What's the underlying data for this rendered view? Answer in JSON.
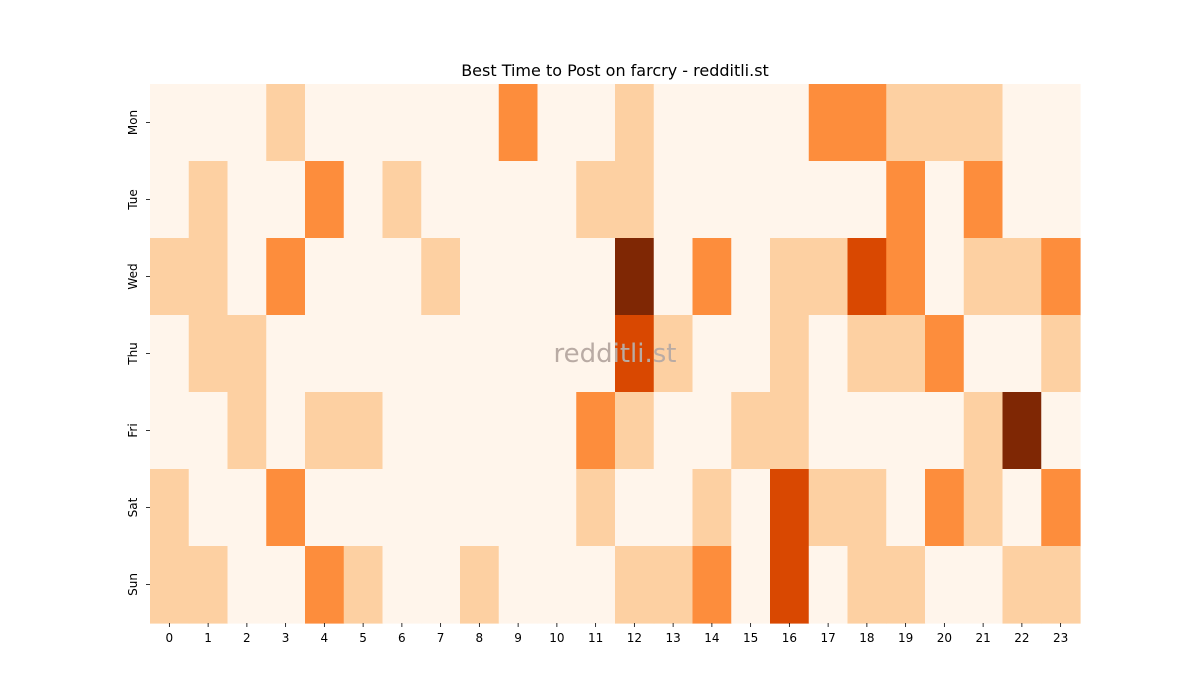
{
  "chart_data": {
    "type": "heatmap",
    "title": "Best Time to Post on farcry - redditli.st",
    "watermark": "redditli.st",
    "xlabel": "",
    "ylabel": "",
    "x": [
      "0",
      "1",
      "2",
      "3",
      "4",
      "5",
      "6",
      "7",
      "8",
      "9",
      "10",
      "11",
      "12",
      "13",
      "14",
      "15",
      "16",
      "17",
      "18",
      "19",
      "20",
      "21",
      "22",
      "23"
    ],
    "y": [
      "Mon",
      "Tue",
      "Wed",
      "Thu",
      "Fri",
      "Sat",
      "Sun"
    ],
    "color_scale": "Oranges",
    "value_range": [
      0,
      3
    ],
    "legend": "none",
    "values": [
      [
        0,
        0,
        0,
        1,
        0,
        0,
        0,
        0,
        0,
        2,
        0,
        0,
        1,
        0,
        0,
        0,
        0,
        2,
        2,
        1,
        1,
        1,
        0,
        0
      ],
      [
        0,
        1,
        0,
        0,
        2,
        0,
        1,
        0,
        0,
        0,
        0,
        1,
        1,
        0,
        0,
        0,
        0,
        0,
        0,
        2,
        0,
        2,
        0,
        0
      ],
      [
        1,
        1,
        0,
        2,
        0,
        0,
        0,
        1,
        0,
        0,
        0,
        0,
        4,
        0,
        2,
        0,
        1,
        1,
        3,
        2,
        0,
        1,
        1,
        2
      ],
      [
        0,
        1,
        1,
        0,
        0,
        0,
        0,
        0,
        0,
        0,
        0,
        0,
        3,
        1,
        0,
        0,
        1,
        0,
        1,
        1,
        2,
        0,
        0,
        1
      ],
      [
        0,
        0,
        1,
        0,
        1,
        1,
        0,
        0,
        0,
        0,
        0,
        2,
        1,
        0,
        0,
        1,
        1,
        0,
        0,
        0,
        0,
        1,
        4,
        0
      ],
      [
        1,
        0,
        0,
        2,
        0,
        0,
        0,
        0,
        0,
        0,
        0,
        1,
        0,
        0,
        1,
        0,
        3,
        1,
        1,
        0,
        2,
        1,
        0,
        2
      ],
      [
        1,
        1,
        0,
        0,
        2,
        1,
        0,
        0,
        1,
        0,
        0,
        0,
        1,
        1,
        2,
        0,
        3,
        0,
        1,
        1,
        0,
        0,
        1,
        1
      ]
    ],
    "colors": [
      "#fff5eb",
      "#fdd0a2",
      "#fd8d3c",
      "#d94801",
      "#7f2704"
    ]
  }
}
